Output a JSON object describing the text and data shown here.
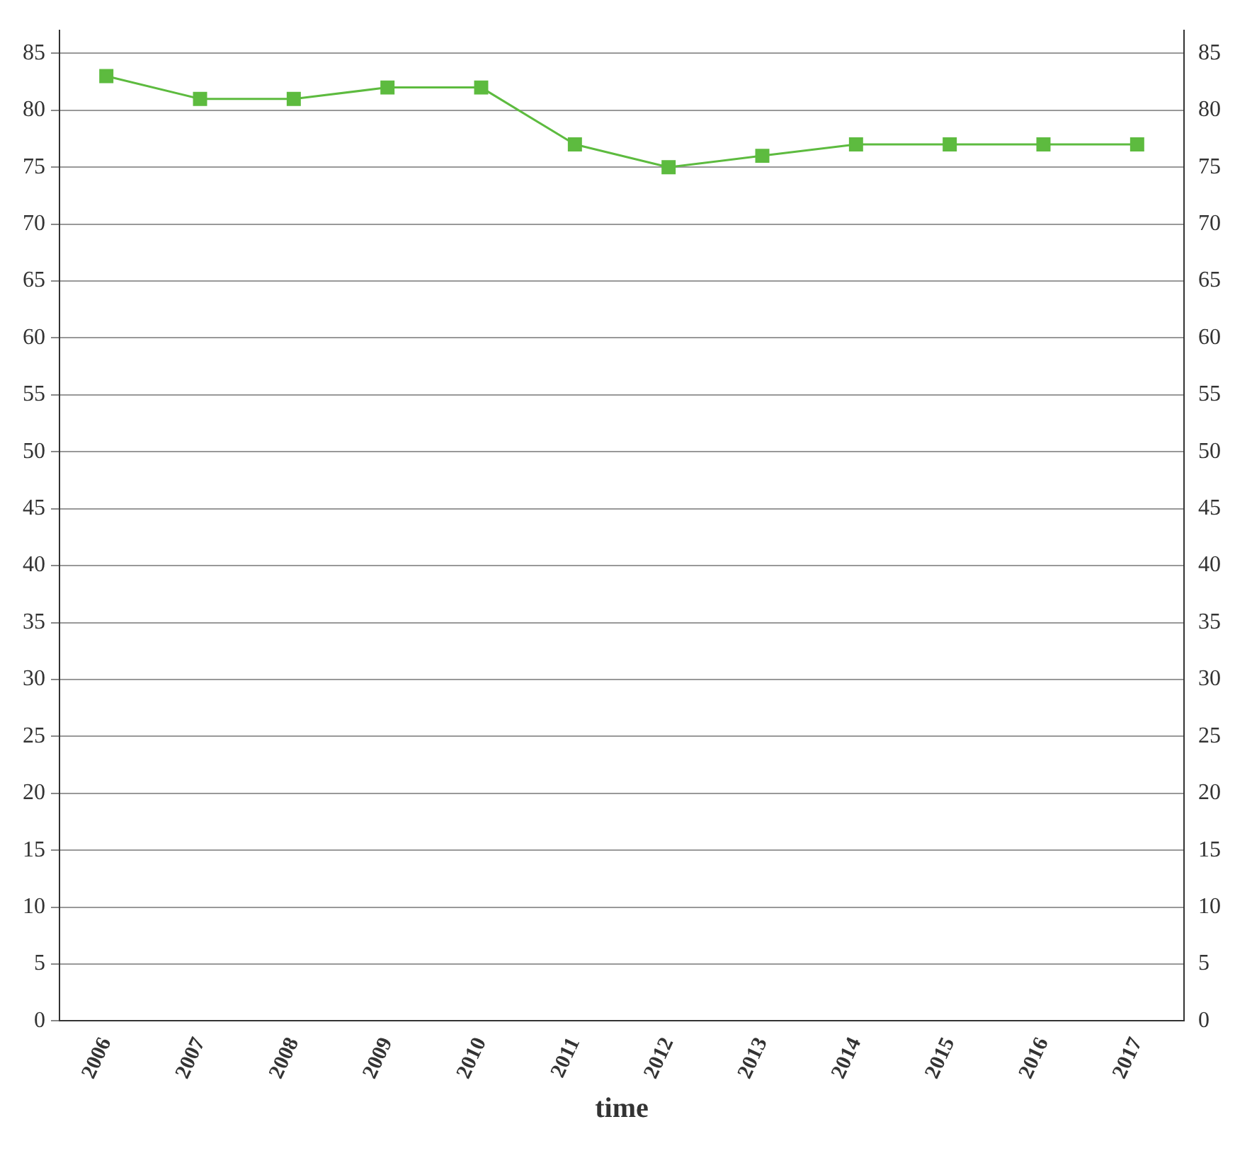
{
  "chart_data": {
    "type": "line",
    "xlabel": "time",
    "categories": [
      "2006",
      "2007",
      "2008",
      "2009",
      "2010",
      "2011",
      "2012",
      "2013",
      "2014",
      "2015",
      "2016",
      "2017"
    ],
    "series": [
      {
        "color": "#5dbb3f",
        "values": [
          83,
          81,
          81,
          82,
          82,
          77,
          75,
          76,
          77,
          77,
          77,
          77
        ]
      }
    ],
    "ylim": [
      0,
      87
    ],
    "yticks": [
      0,
      5,
      10,
      15,
      20,
      25,
      30,
      35,
      40,
      45,
      50,
      55,
      60,
      65,
      70,
      75,
      80,
      85
    ],
    "y2lim": [
      0,
      87
    ],
    "y2ticks": [
      0,
      5,
      10,
      15,
      20,
      25,
      30,
      35,
      40,
      45,
      50,
      55,
      60,
      65,
      70,
      75,
      80,
      85
    ],
    "grid": "y",
    "legend": false,
    "marker": "square",
    "line_style": "solid"
  }
}
